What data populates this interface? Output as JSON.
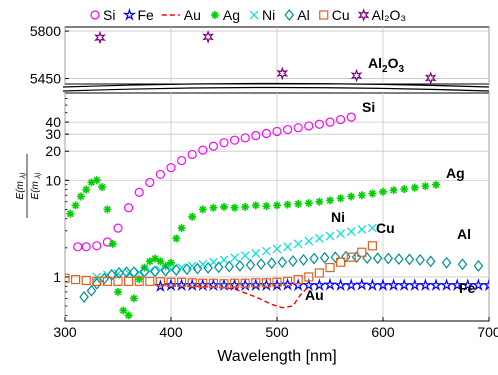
{
  "chart_data": {
    "type": "scatter",
    "xlabel": "Wavelength [nm]",
    "xlim": [
      300,
      700
    ],
    "x_ticks": [
      "300",
      "400",
      "500",
      "600",
      "700"
    ],
    "y_axis_scale": "log with broken axis",
    "ylim_lower": [
      0.35,
      80
    ],
    "ylim_upper": [
      5410,
      5830
    ],
    "y_ticks_lower": [
      "1",
      "10",
      "20",
      "30",
      "40"
    ],
    "y_ticks_upper": [
      "5450",
      "5800"
    ],
    "grid": true,
    "legend_position": "top",
    "ylabel_num": "E(m_λ)_liquid",
    "ylabel_den": "E(m_λ)_solid",
    "series": [
      {
        "name": "Si",
        "color": "#ff00ff",
        "marker": "circle",
        "line": "none",
        "label_text": "Si",
        "points": [
          [
            312,
            2.05
          ],
          [
            320,
            2.05
          ],
          [
            330,
            2.1
          ],
          [
            340,
            2.3
          ],
          [
            350,
            3.2
          ],
          [
            360,
            5.2
          ],
          [
            370,
            7.5
          ],
          [
            380,
            9.5
          ],
          [
            390,
            11.5
          ],
          [
            400,
            13.5
          ],
          [
            410,
            16.0
          ],
          [
            420,
            18.5
          ],
          [
            430,
            20.5
          ],
          [
            440,
            22.5
          ],
          [
            450,
            24.5
          ],
          [
            460,
            26.0
          ],
          [
            470,
            27.5
          ],
          [
            480,
            29.0
          ],
          [
            490,
            30.5
          ],
          [
            500,
            32.0
          ],
          [
            510,
            33.5
          ],
          [
            520,
            35.0
          ],
          [
            530,
            36.5
          ],
          [
            540,
            38.0
          ],
          [
            550,
            40.0
          ],
          [
            560,
            42.5
          ],
          [
            570,
            45.0
          ]
        ]
      },
      {
        "name": "Fe",
        "color": "#0000ff",
        "marker": "star",
        "line": "none",
        "label_text": "Fe",
        "points": [
          [
            390,
            0.8
          ],
          [
            400,
            0.82
          ],
          [
            410,
            0.82
          ],
          [
            420,
            0.82
          ],
          [
            430,
            0.82
          ],
          [
            440,
            0.82
          ],
          [
            450,
            0.82
          ],
          [
            460,
            0.82
          ],
          [
            470,
            0.82
          ],
          [
            480,
            0.82
          ],
          [
            490,
            0.82
          ],
          [
            500,
            0.82
          ],
          [
            510,
            0.83
          ],
          [
            520,
            0.82
          ],
          [
            530,
            0.82
          ],
          [
            540,
            0.82
          ],
          [
            550,
            0.83
          ],
          [
            560,
            0.82
          ],
          [
            570,
            0.82
          ],
          [
            580,
            0.83
          ],
          [
            590,
            0.82
          ],
          [
            600,
            0.82
          ],
          [
            610,
            0.82
          ],
          [
            620,
            0.82
          ],
          [
            630,
            0.82
          ],
          [
            640,
            0.82
          ],
          [
            650,
            0.82
          ],
          [
            660,
            0.82
          ],
          [
            670,
            0.82
          ],
          [
            680,
            0.82
          ],
          [
            690,
            0.82
          ],
          [
            700,
            0.82
          ]
        ]
      },
      {
        "name": "Au",
        "color": "#ff0000",
        "marker": "none",
        "line": "dashed",
        "label_text": "Au",
        "points": [
          [
            400,
            0.8
          ],
          [
            420,
            0.8
          ],
          [
            440,
            0.79
          ],
          [
            460,
            0.75
          ],
          [
            480,
            0.62
          ],
          [
            495,
            0.52
          ],
          [
            505,
            0.48
          ],
          [
            515,
            0.5
          ],
          [
            522,
            0.65
          ],
          [
            530,
            0.8
          ]
        ]
      },
      {
        "name": "Ag",
        "color": "#00d000",
        "marker": "asterisk",
        "line": "none",
        "label_text": "Ag",
        "points": [
          [
            305,
            4.5
          ],
          [
            310,
            5.5
          ],
          [
            315,
            6.8
          ],
          [
            320,
            8.0
          ],
          [
            325,
            9.5
          ],
          [
            330,
            10.0
          ],
          [
            335,
            8.5
          ],
          [
            340,
            5.0
          ],
          [
            345,
            2.2
          ],
          [
            350,
            0.7
          ],
          [
            355,
            0.45
          ],
          [
            360,
            0.4
          ],
          [
            365,
            0.6
          ],
          [
            370,
            0.95
          ],
          [
            375,
            1.25
          ],
          [
            380,
            1.45
          ],
          [
            385,
            1.55
          ],
          [
            390,
            1.45
          ],
          [
            395,
            1.3
          ],
          [
            400,
            1.4
          ],
          [
            405,
            2.5
          ],
          [
            410,
            3.2
          ],
          [
            420,
            4.2
          ],
          [
            430,
            5.0
          ],
          [
            440,
            5.2
          ],
          [
            450,
            5.3
          ],
          [
            460,
            5.2
          ],
          [
            470,
            5.3
          ],
          [
            480,
            5.5
          ],
          [
            490,
            5.4
          ],
          [
            500,
            5.5
          ],
          [
            510,
            5.6
          ],
          [
            520,
            5.7
          ],
          [
            530,
            5.8
          ],
          [
            540,
            6.0
          ],
          [
            550,
            6.2
          ],
          [
            560,
            6.5
          ],
          [
            570,
            6.8
          ],
          [
            580,
            7.0
          ],
          [
            590,
            7.3
          ],
          [
            600,
            7.6
          ],
          [
            610,
            7.9
          ],
          [
            620,
            8.1
          ],
          [
            630,
            8.4
          ],
          [
            640,
            8.7
          ],
          [
            650,
            9.0
          ]
        ]
      },
      {
        "name": "Ni",
        "color": "#00e0e0",
        "marker": "cross",
        "line": "none",
        "label_text": "Ni",
        "points": [
          [
            330,
            1.0
          ],
          [
            340,
            1.05
          ],
          [
            350,
            1.08
          ],
          [
            360,
            1.1
          ],
          [
            370,
            1.12
          ],
          [
            380,
            1.15
          ],
          [
            390,
            1.18
          ],
          [
            400,
            1.2
          ],
          [
            410,
            1.25
          ],
          [
            420,
            1.3
          ],
          [
            430,
            1.35
          ],
          [
            440,
            1.42
          ],
          [
            450,
            1.5
          ],
          [
            460,
            1.58
          ],
          [
            470,
            1.66
          ],
          [
            480,
            1.75
          ],
          [
            490,
            1.85
          ],
          [
            500,
            1.95
          ],
          [
            510,
            2.05
          ],
          [
            520,
            2.2
          ],
          [
            530,
            2.35
          ],
          [
            540,
            2.5
          ],
          [
            550,
            2.65
          ],
          [
            560,
            2.8
          ],
          [
            570,
            2.95
          ],
          [
            580,
            3.1
          ],
          [
            590,
            3.2
          ]
        ]
      },
      {
        "name": "Al",
        "color": "#009090",
        "marker": "diamond",
        "line": "none",
        "label_text": "Al",
        "points": [
          [
            318,
            0.62
          ],
          [
            325,
            0.72
          ],
          [
            330,
            0.85
          ],
          [
            337,
            0.96
          ],
          [
            344,
            1.05
          ],
          [
            351,
            1.1
          ],
          [
            358,
            1.12
          ],
          [
            365,
            1.12
          ],
          [
            375,
            1.13
          ],
          [
            385,
            1.14
          ],
          [
            395,
            1.16
          ],
          [
            405,
            1.18
          ],
          [
            415,
            1.2
          ],
          [
            425,
            1.22
          ],
          [
            435,
            1.24
          ],
          [
            445,
            1.26
          ],
          [
            455,
            1.28
          ],
          [
            465,
            1.3
          ],
          [
            475,
            1.33
          ],
          [
            485,
            1.36
          ],
          [
            495,
            1.39
          ],
          [
            505,
            1.42
          ],
          [
            515,
            1.46
          ],
          [
            525,
            1.5
          ],
          [
            535,
            1.55
          ],
          [
            545,
            1.58
          ],
          [
            555,
            1.6
          ],
          [
            565,
            1.62
          ],
          [
            575,
            1.6
          ],
          [
            585,
            1.57
          ],
          [
            595,
            1.56
          ],
          [
            605,
            1.55
          ],
          [
            615,
            1.53
          ],
          [
            625,
            1.52
          ],
          [
            635,
            1.5
          ],
          [
            645,
            1.45
          ],
          [
            660,
            1.4
          ],
          [
            675,
            1.35
          ],
          [
            690,
            1.3
          ]
        ]
      },
      {
        "name": "Cu",
        "color": "#e06020",
        "marker": "square",
        "line": "none",
        "label_text": "Cu",
        "points": [
          [
            300,
            0.97
          ],
          [
            310,
            0.94
          ],
          [
            320,
            0.92
          ],
          [
            330,
            0.9
          ],
          [
            340,
            0.9
          ],
          [
            350,
            0.9
          ],
          [
            360,
            0.9
          ],
          [
            370,
            0.9
          ],
          [
            380,
            0.9
          ],
          [
            390,
            0.89
          ],
          [
            400,
            0.88
          ],
          [
            410,
            0.88
          ],
          [
            420,
            0.87
          ],
          [
            430,
            0.86
          ],
          [
            440,
            0.86
          ],
          [
            450,
            0.85
          ],
          [
            460,
            0.86
          ],
          [
            470,
            0.86
          ],
          [
            480,
            0.87
          ],
          [
            490,
            0.87
          ],
          [
            500,
            0.88
          ],
          [
            510,
            0.9
          ],
          [
            520,
            0.94
          ],
          [
            530,
            1.0
          ],
          [
            540,
            1.1
          ],
          [
            550,
            1.25
          ],
          [
            560,
            1.42
          ],
          [
            570,
            1.6
          ],
          [
            580,
            1.8
          ],
          [
            590,
            2.1
          ]
        ]
      },
      {
        "name": "Al2O3",
        "legend_text": "Al₂O₃",
        "color": "#800080",
        "marker": "hexstar",
        "line": "none",
        "label_parts": [
          "Al",
          "2",
          "O",
          "3"
        ],
        "points": [
          [
            333,
            5752
          ],
          [
            435,
            5757
          ],
          [
            505,
            5488
          ],
          [
            575,
            5472
          ],
          [
            645,
            5454
          ]
        ]
      }
    ]
  }
}
